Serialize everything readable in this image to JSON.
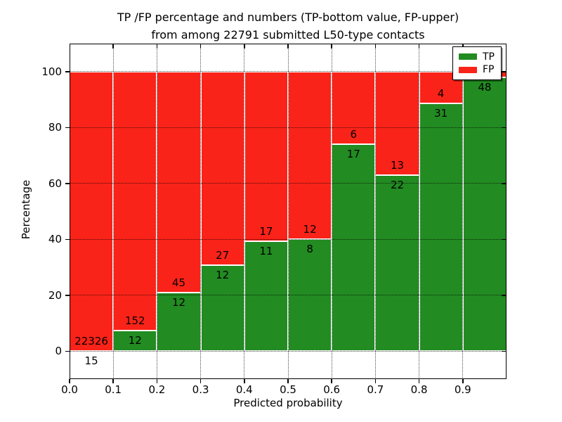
{
  "title": {
    "line1": "TP /FP percentage and numbers (TP-bottom value, FP-upper)",
    "line2": "from among 22791 submitted L50-type contacts"
  },
  "axes": {
    "xlabel": "Predicted probability",
    "ylabel": "Percentage",
    "x_tick_labels": [
      "0.0",
      "0.1",
      "0.2",
      "0.3",
      "0.4",
      "0.5",
      "0.6",
      "0.7",
      "0.8",
      "0.9"
    ],
    "x_tick_values": [
      0.0,
      0.1,
      0.2,
      0.3,
      0.4,
      0.5,
      0.6,
      0.7,
      0.8,
      0.9
    ],
    "y_tick_labels": [
      "0",
      "20",
      "40",
      "60",
      "80",
      "100"
    ],
    "y_tick_values": [
      0,
      20,
      40,
      60,
      80,
      100
    ],
    "xlim": [
      0.0,
      1.0
    ],
    "ylim": [
      -10,
      110
    ],
    "grid": "dotted"
  },
  "legend": {
    "position": "upper-right",
    "items": [
      {
        "label": "TP",
        "color": "#228b22"
      },
      {
        "label": "FP",
        "color": "#fa2319"
      }
    ]
  },
  "chart_data": {
    "type": "bar",
    "stacked": true,
    "normalized": "each 0.1-wide bin scaled so TP%+FP% = 100",
    "title": "TP /FP percentage and numbers (TP-bottom value, FP-upper) from among 22791 submitted L50-type contacts",
    "xlabel": "Predicted probability",
    "ylabel": "Percentage",
    "bin_edges": [
      0.0,
      0.1,
      0.2,
      0.3,
      0.4,
      0.5,
      0.6,
      0.7,
      0.8,
      0.9,
      1.0
    ],
    "series": [
      {
        "name": "TP",
        "color": "#228b22",
        "counts": [
          15,
          12,
          12,
          12,
          11,
          8,
          17,
          22,
          31,
          48
        ]
      },
      {
        "name": "FP",
        "color": "#fa2319",
        "counts": [
          22326,
          152,
          45,
          27,
          17,
          12,
          6,
          13,
          4,
          1
        ]
      }
    ],
    "tp_percent": [
      0.07,
      7.32,
      21.05,
      30.77,
      39.29,
      40.0,
      73.91,
      62.86,
      88.57,
      97.96
    ],
    "tp_count_labels": [
      "15",
      "12",
      "12",
      "12",
      "11",
      "8",
      "17",
      "22",
      "31",
      "48"
    ],
    "fp_count_labels": [
      "22326",
      "152",
      "45",
      "27",
      "17",
      "12",
      "6",
      "13",
      "4",
      null
    ]
  },
  "colors": {
    "tp": "#228b22",
    "fp": "#fa2319",
    "background": "#ffffff",
    "grid": "#000000"
  }
}
